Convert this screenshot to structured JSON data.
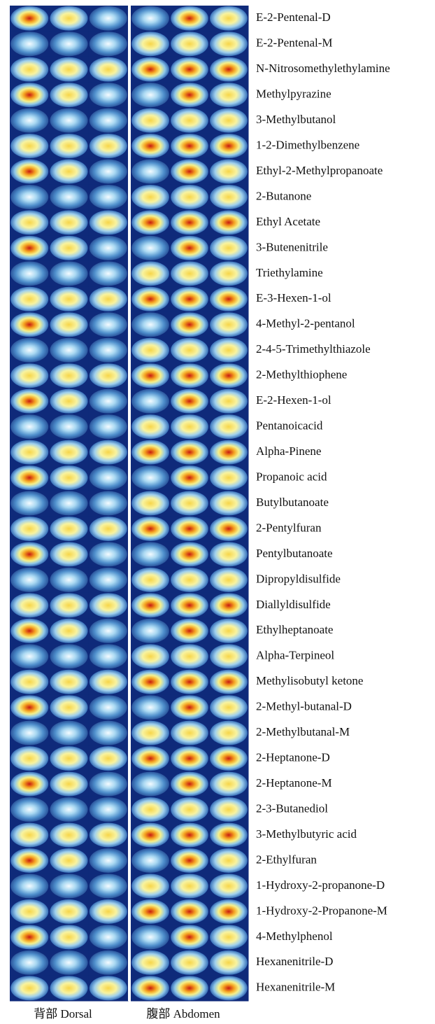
{
  "rows": [
    "E-2-Pentenal-D",
    "E-2-Pentenal-M",
    "N-Nitrosomethylethylamine",
    "Methylpyrazine",
    "3-Methylbutanol",
    "1-2-Dimethylbenzene",
    "Ethyl-2-Methylpropanoate",
    "2-Butanone",
    "Ethyl Acetate",
    "3-Butenenitrile",
    "Triethylamine",
    "E-3-Hexen-1-ol",
    "4-Methyl-2-pentanol",
    "2-4-5-Trimethylthiazole",
    "2-Methylthiophene",
    "E-2-Hexen-1-ol",
    "Pentanoicacid",
    "Alpha-Pinene",
    "Propanoic acid",
    "Butylbutanoate",
    "2-Pentylfuran",
    "Pentylbutanoate",
    "Dipropyldisulfide",
    "Diallyldisulfide",
    "Ethylheptanoate",
    "Alpha-Terpineol",
    "Methylisobutyl ketone",
    "2-Methyl-butanal-D",
    "2-Methylbutanal-M",
    "2-Heptanone-D",
    "2-Heptanone-M",
    "2-3-Butanediol",
    "3-Methylbutyric acid",
    "2-Ethylfuran",
    "1-Hydroxy-2-propanone-D",
    "1-Hydroxy-2-Propanone-M",
    "4-Methylphenol",
    "Hexanenitrile-D",
    "Hexanenitrile-M"
  ],
  "groups": [
    "背部 Dorsal",
    "腹部 Abdomen"
  ]
}
